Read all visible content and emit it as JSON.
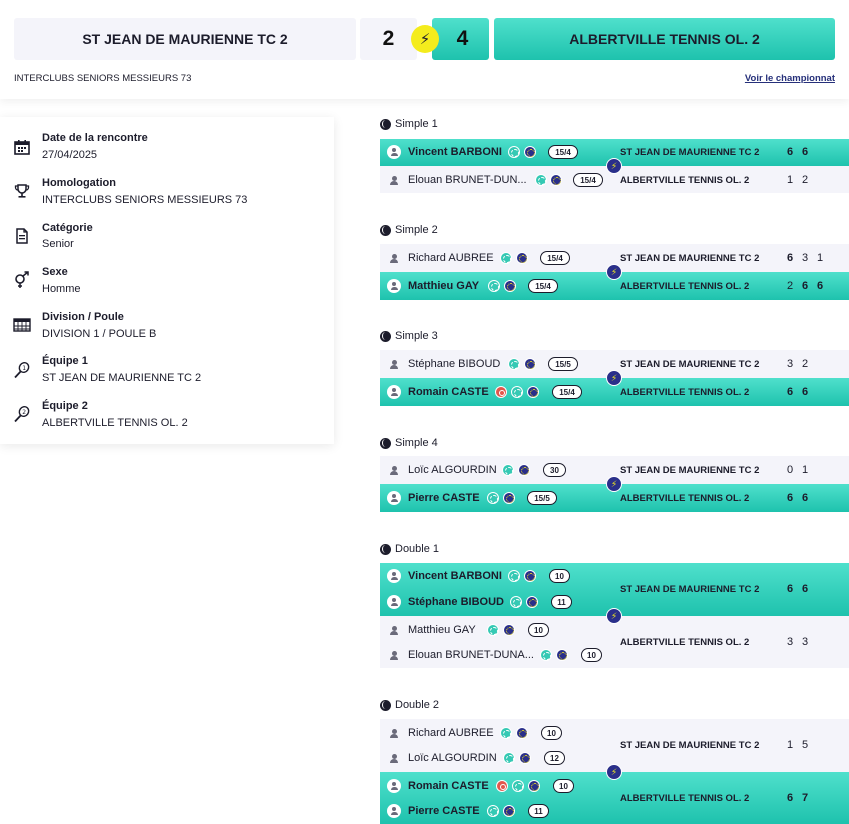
{
  "header": {
    "home_team": "ST JEAN DE MAURIENNE TC 2",
    "away_team": "ALBERTVILLE TENNIS OL. 2",
    "home_score": "2",
    "away_score": "4",
    "vs_icon": "bolt-icon",
    "competition": "INTERCLUBS SENIORS MESSIEURS 73",
    "champ_link": "Voir le championnat"
  },
  "info": {
    "date_label": "Date de la rencontre",
    "date_value": "27/04/2025",
    "homolog_label": "Homologation",
    "homolog_value": "INTERCLUBS SENIORS MESSIEURS 73",
    "cat_label": "Catégorie",
    "cat_value": "Senior",
    "sexe_label": "Sexe",
    "sexe_value": "Homme",
    "div_label": "Division / Poule",
    "div_value": "DIVISION 1 / POULE B",
    "team1_label": "Équipe 1",
    "team1_value": "ST JEAN DE MAURIENNE TC 2",
    "team2_label": "Équipe 2",
    "team2_value": "ALBERTVILLE TENNIS OL. 2"
  },
  "matches": {
    "s1": {
      "title": "Simple 1",
      "p1": "Vincent BARBONI",
      "p1_rank": "15/4",
      "p2": "Elouan BRUNET-DUN...",
      "p2_rank": "15/4",
      "team1": "ST JEAN DE MAURIENNE TC 2",
      "team2": "ALBERTVILLE TENNIS OL. 2",
      "sets1": [
        "6",
        "6"
      ],
      "sets2": [
        "1",
        "2"
      ]
    },
    "s2": {
      "title": "Simple 2",
      "p1": "Richard AUBREE",
      "p1_rank": "15/4",
      "p2": "Matthieu GAY",
      "p2_rank": "15/4",
      "team1": "ST JEAN DE MAURIENNE TC 2",
      "team2": "ALBERTVILLE TENNIS OL. 2",
      "sets1": [
        "6",
        "3",
        "1"
      ],
      "sets2": [
        "2",
        "6",
        "6"
      ]
    },
    "s3": {
      "title": "Simple 3",
      "p1": "Stéphane BIBOUD",
      "p1_rank": "15/5",
      "p2": "Romain CASTE",
      "p2_rank": "15/4",
      "team1": "ST JEAN DE MAURIENNE TC 2",
      "team2": "ALBERTVILLE TENNIS OL. 2",
      "sets1": [
        "3",
        "2"
      ],
      "sets2": [
        "6",
        "6"
      ]
    },
    "s4": {
      "title": "Simple 4",
      "p1": "Loïc ALGOURDIN",
      "p1_rank": "30",
      "p2": "Pierre CASTE",
      "p2_rank": "15/5",
      "team1": "ST JEAN DE MAURIENNE TC 2",
      "team2": "ALBERTVILLE TENNIS OL. 2",
      "sets1": [
        "0",
        "1"
      ],
      "sets2": [
        "6",
        "6"
      ]
    },
    "d1": {
      "title": "Double 1",
      "p1a": "Vincent BARBONI",
      "p1a_rank": "10",
      "p1b": "Stéphane BIBOUD",
      "p1b_rank": "11",
      "p2a": "Matthieu GAY",
      "p2a_rank": "10",
      "p2b": "Elouan BRUNET-DUNA...",
      "p2b_rank": "10",
      "team1": "ST JEAN DE MAURIENNE TC 2",
      "team2": "ALBERTVILLE TENNIS OL. 2",
      "sets1": [
        "6",
        "6"
      ],
      "sets2": [
        "3",
        "3"
      ]
    },
    "d2": {
      "title": "Double 2",
      "p1a": "Richard AUBREE",
      "p1a_rank": "10",
      "p1b": "Loïc ALGOURDIN",
      "p1b_rank": "12",
      "p2a": "Romain CASTE",
      "p2a_rank": "10",
      "p2b": "Pierre CASTE",
      "p2b_rank": "11",
      "team1": "ST JEAN DE MAURIENNE TC 2",
      "team2": "ALBERTVILLE TENNIS OL. 2",
      "sets1": [
        "1",
        "5"
      ],
      "sets2": [
        "6",
        "7"
      ]
    }
  }
}
